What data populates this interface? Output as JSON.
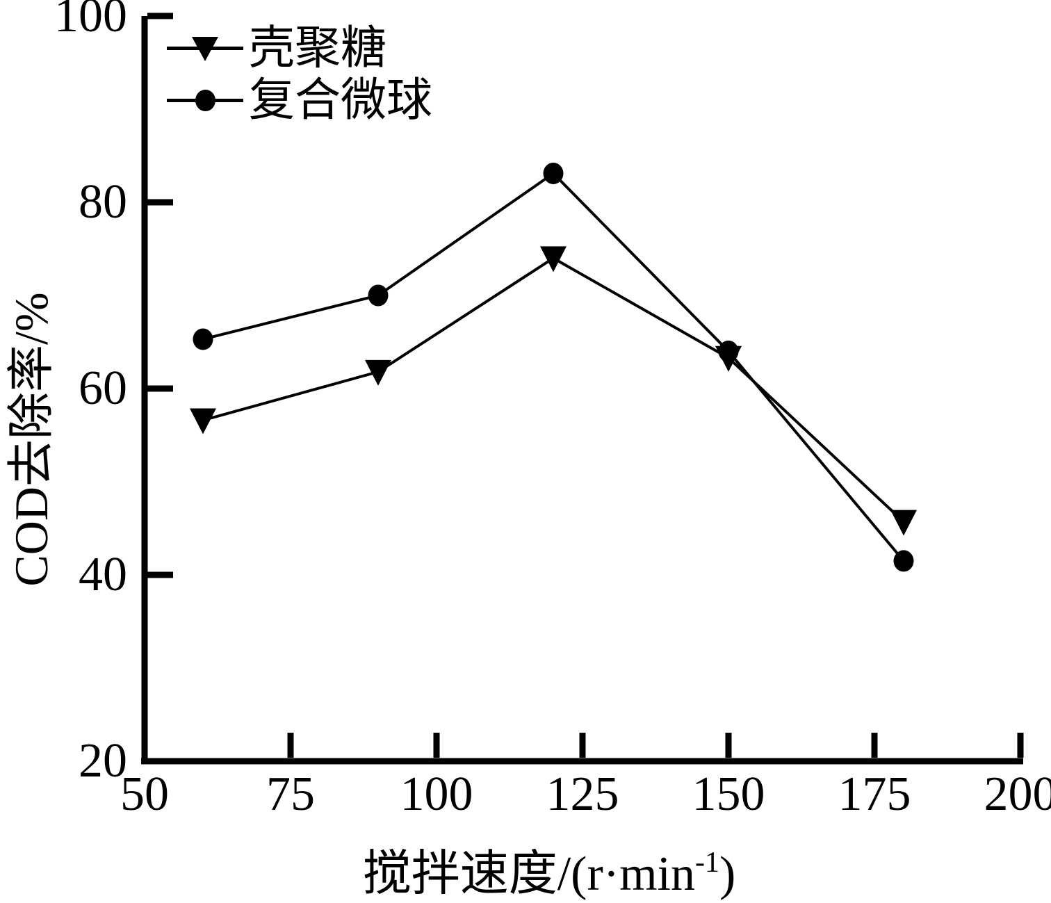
{
  "chart_data": {
    "type": "line",
    "title": "",
    "x": [
      60,
      90,
      120,
      150,
      180
    ],
    "series": [
      {
        "name": "壳聚糖",
        "marker": "triangle-down",
        "color": "#000000",
        "values": [
          56.6,
          61.8,
          74.0,
          63.3,
          45.7
        ]
      },
      {
        "name": "复合微球",
        "marker": "circle",
        "color": "#000000",
        "values": [
          65.3,
          70.0,
          83.1,
          64.0,
          41.5
        ]
      }
    ],
    "xlabel": "搅拌速度/(r·min⁻¹)",
    "xlabel_prefix": "搅拌速度/(r·min",
    "xlabel_sup": "-1",
    "xlabel_suffix": ")",
    "ylabel": "COD去除率/%",
    "xlim": [
      50,
      200
    ],
    "ylim": [
      20,
      100
    ],
    "xticks": [
      "50",
      "75",
      "100",
      "125",
      "150",
      "175",
      "200"
    ],
    "yticks": [
      "100",
      "80",
      "60",
      "40",
      "20"
    ],
    "grid": false,
    "legend_position": "top-left",
    "axis_color": "#000000",
    "background": "#ffffff"
  }
}
